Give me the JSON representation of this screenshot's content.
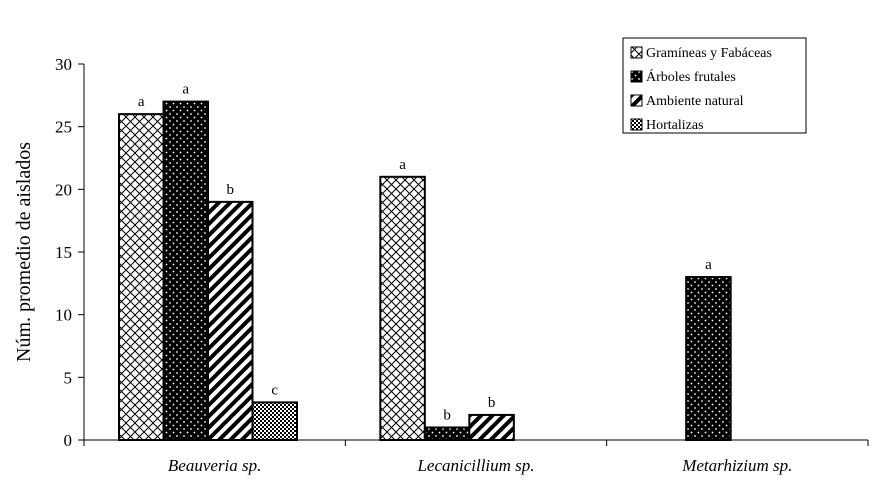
{
  "chart_data": {
    "type": "bar",
    "title": "",
    "xlabel": "",
    "ylabel": "Núm. promedio de aislados",
    "ylim": [
      0,
      30
    ],
    "yticks": [
      0,
      5,
      10,
      15,
      20,
      25,
      30
    ],
    "grid": false,
    "legend_position": "top-right",
    "categories": [
      "Beauveria sp.",
      "Lecanicillium sp.",
      "Metarhizium sp."
    ],
    "series": [
      {
        "name": "Gramíneas y Fabáceas",
        "pattern": "crosshatch",
        "values": [
          26,
          21,
          null
        ],
        "labels": [
          "a",
          "a",
          ""
        ]
      },
      {
        "name": "Árboles frutales",
        "pattern": "dots",
        "values": [
          27,
          1,
          13
        ],
        "labels": [
          "a",
          "b",
          "a"
        ]
      },
      {
        "name": "Ambiente natural",
        "pattern": "diagonal",
        "values": [
          19,
          2,
          null
        ],
        "labels": [
          "b",
          "b",
          ""
        ]
      },
      {
        "name": "Hortalizas",
        "pattern": "checker",
        "values": [
          3,
          null,
          null
        ],
        "labels": [
          "c",
          "",
          ""
        ]
      }
    ]
  }
}
